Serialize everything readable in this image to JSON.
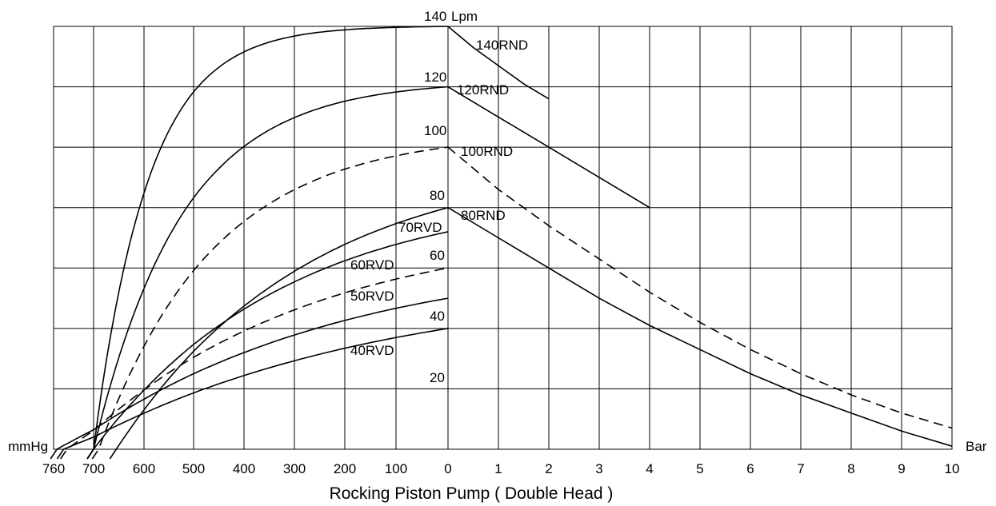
{
  "chart_data": {
    "type": "line",
    "xlabel": "Rocking Piston Pump ( Double Head )",
    "grid": true,
    "left_axis": {
      "unit": "mmHg",
      "range": [
        760,
        0
      ],
      "ticks": [
        "760",
        "700",
        "600",
        "500",
        "400",
        "300",
        "200",
        "100",
        "0"
      ]
    },
    "right_axis": {
      "unit": "Bar",
      "range": [
        0,
        10
      ],
      "ticks": [
        "1",
        "2",
        "3",
        "4",
        "5",
        "6",
        "7",
        "8",
        "9",
        "10"
      ]
    },
    "y_axis": {
      "unit": "Lpm",
      "range": [
        0,
        140
      ],
      "tick_labels": [
        "140",
        "120",
        "100",
        "80",
        "60",
        "40",
        "20"
      ]
    },
    "vacuum_series": [
      {
        "name": "140RND",
        "style": "solid",
        "max_flow": 140,
        "zero_at_mmHg": 700,
        "steepness": 6.5
      },
      {
        "name": "120RND",
        "style": "solid",
        "max_flow": 120,
        "zero_at_mmHg": 700,
        "steepness": 4.0
      },
      {
        "name": "100RND",
        "style": "dashed",
        "max_flow": 100,
        "zero_at_mmHg": 690,
        "steepness": 3.0
      },
      {
        "name": "80RND",
        "style": "solid",
        "max_flow": 80,
        "zero_at_mmHg": 655,
        "steepness": 1.7
      },
      {
        "name": "70RVD",
        "style": "solid",
        "max_flow": 72,
        "zero_at_mmHg": 700,
        "steepness": 1.8
      },
      {
        "name": "60RVD",
        "style": "dashed",
        "max_flow": 60,
        "zero_at_mmHg": 740,
        "steepness": 1.6
      },
      {
        "name": "50RVD",
        "style": "solid",
        "max_flow": 50,
        "zero_at_mmHg": 755,
        "steepness": 1.4
      },
      {
        "name": "40RVD",
        "style": "solid",
        "max_flow": 40,
        "zero_at_mmHg": 745,
        "steepness": 1.2
      }
    ],
    "pressure_series": [
      {
        "name": "140RND",
        "style": "solid",
        "points": [
          [
            0,
            140
          ],
          [
            0.5,
            133
          ],
          [
            1,
            127
          ],
          [
            1.5,
            121
          ],
          [
            2,
            116
          ]
        ]
      },
      {
        "name": "120RND",
        "style": "solid",
        "points": [
          [
            0,
            120
          ],
          [
            1,
            110
          ],
          [
            2,
            100
          ],
          [
            3,
            90
          ],
          [
            4,
            80
          ]
        ]
      },
      {
        "name": "100RND",
        "style": "dashed",
        "points": [
          [
            0,
            100
          ],
          [
            1,
            86
          ],
          [
            2,
            74
          ],
          [
            3,
            63
          ],
          [
            4,
            52
          ],
          [
            5,
            42
          ],
          [
            6,
            33
          ],
          [
            7,
            25
          ],
          [
            8,
            18
          ],
          [
            9,
            12
          ],
          [
            10,
            7
          ]
        ]
      },
      {
        "name": "80RND",
        "style": "solid",
        "points": [
          [
            0,
            80
          ],
          [
            1,
            70
          ],
          [
            2,
            60
          ],
          [
            3,
            50
          ],
          [
            4,
            41
          ],
          [
            5,
            33
          ],
          [
            6,
            25
          ],
          [
            7,
            18
          ],
          [
            8,
            12
          ],
          [
            9,
            6
          ],
          [
            10,
            1
          ]
        ]
      }
    ],
    "curve_labels": {
      "lpm_unit": "Lpm",
      "l140RND": "140RND",
      "l120RND": "120RND",
      "l100RND": "100RND",
      "l80RND": "80RND",
      "l70RVD": "70RVD",
      "l60RVD": "60RVD",
      "l50RVD": "50RVD",
      "l40RVD": "40RVD"
    }
  }
}
